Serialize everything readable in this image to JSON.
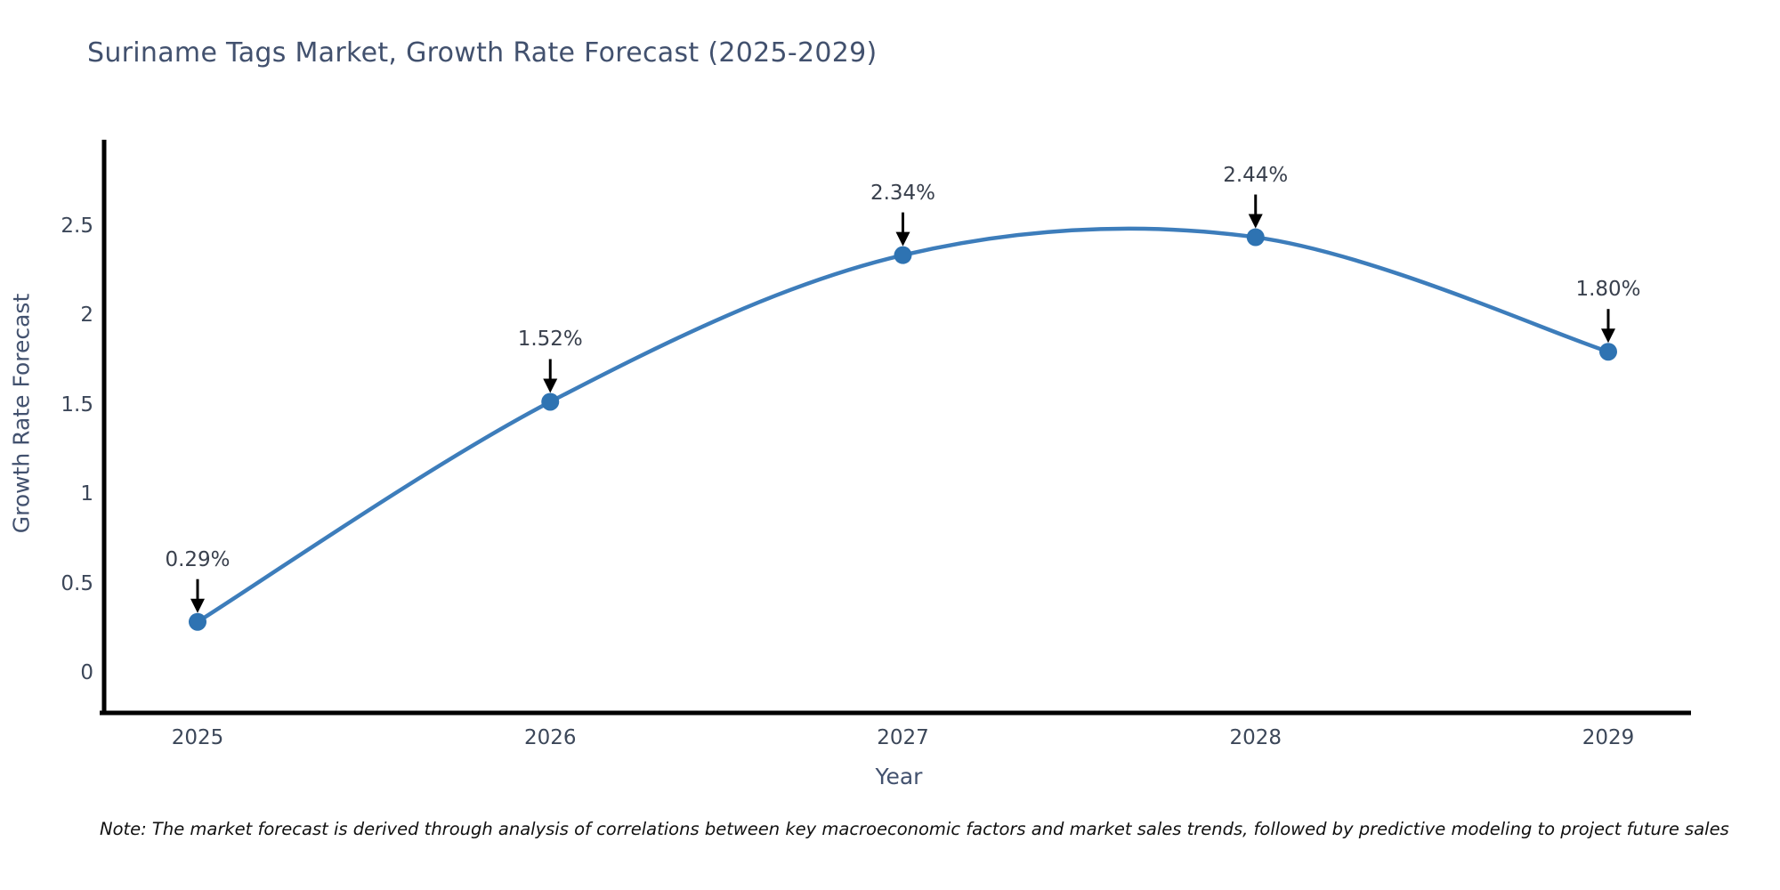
{
  "title": "Suriname Tags Market, Growth Rate Forecast (2025-2029)",
  "note": "Note: The market forecast is derived through analysis of correlations between key macroeconomic factors and market sales trends, followed by predictive modeling to project future sales",
  "chart_data": {
    "type": "line",
    "title": "Suriname Tags Market, Growth Rate Forecast (2025-2029)",
    "xlabel": "Year",
    "ylabel": "Growth Rate Forecast",
    "categories": [
      "2025",
      "2026",
      "2027",
      "2028",
      "2029"
    ],
    "values": [
      0.29,
      1.52,
      2.34,
      2.44,
      1.8
    ],
    "point_labels": [
      "0.29%",
      "1.52%",
      "2.34%",
      "2.44%",
      "1.80%"
    ],
    "yticks": [
      "0",
      "0.5",
      "1",
      "1.5",
      "2",
      "2.5"
    ],
    "ytick_values": [
      0,
      0.5,
      1,
      1.5,
      2,
      2.5
    ],
    "ylim": [
      -0.22,
      2.98
    ],
    "grid": false,
    "legend_position": "none",
    "smooth_spline": true,
    "line_color": "#3d7dbb",
    "marker_color": "#2e73b2",
    "arrow_color": "#000000",
    "axis_spine_color": "#000000",
    "background_color": "#ffffff"
  }
}
